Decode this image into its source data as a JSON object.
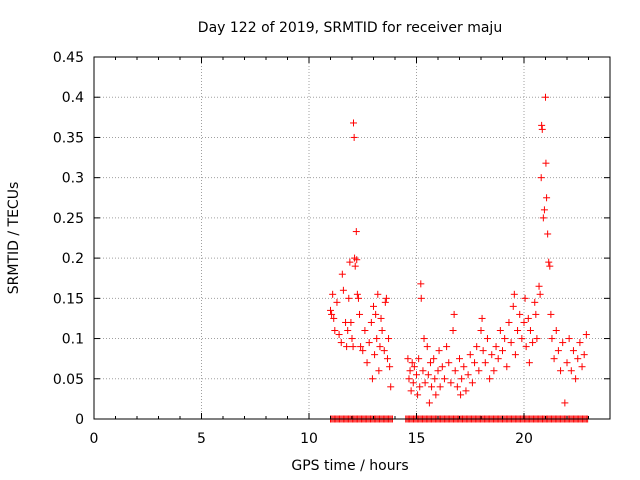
{
  "chart_data": {
    "type": "scatter",
    "title": "Day 122 of 2019, SRMTID for receiver maju",
    "xlabel": "GPS time / hours",
    "ylabel": "SRMTID / TECUs",
    "xlim": [
      0,
      24
    ],
    "ylim": [
      0,
      0.45
    ],
    "xticks": [
      "0",
      "5",
      "10",
      "15",
      "20"
    ],
    "yticks": [
      "0",
      "0.05",
      "0.1",
      "0.15",
      "0.2",
      "0.25",
      "0.3",
      "0.35",
      "0.4",
      "0.45"
    ],
    "grid": true,
    "marker": "+",
    "color": "#ff0000",
    "series": [
      {
        "name": "SRMTID",
        "points": [
          [
            11.0,
            0.135
          ],
          [
            11.05,
            0.13
          ],
          [
            11.1,
            0.155
          ],
          [
            11.15,
            0.125
          ],
          [
            11.2,
            0.11
          ],
          [
            11.3,
            0.145
          ],
          [
            11.4,
            0.105
          ],
          [
            11.5,
            0.095
          ],
          [
            11.55,
            0.18
          ],
          [
            11.6,
            0.16
          ],
          [
            11.7,
            0.12
          ],
          [
            11.75,
            0.09
          ],
          [
            11.8,
            0.11
          ],
          [
            11.85,
            0.15
          ],
          [
            11.9,
            0.195
          ],
          [
            11.95,
            0.12
          ],
          [
            12.0,
            0.1
          ],
          [
            12.05,
            0.09
          ],
          [
            12.07,
            0.368
          ],
          [
            12.1,
            0.35
          ],
          [
            12.12,
            0.2
          ],
          [
            12.15,
            0.19
          ],
          [
            12.2,
            0.233
          ],
          [
            12.22,
            0.198
          ],
          [
            12.25,
            0.155
          ],
          [
            12.3,
            0.15
          ],
          [
            12.35,
            0.13
          ],
          [
            12.4,
            0.09
          ],
          [
            12.5,
            0.085
          ],
          [
            12.6,
            0.11
          ],
          [
            12.7,
            0.07
          ],
          [
            12.8,
            0.095
          ],
          [
            12.9,
            0.12
          ],
          [
            12.95,
            0.05
          ],
          [
            13.0,
            0.14
          ],
          [
            13.05,
            0.08
          ],
          [
            13.1,
            0.13
          ],
          [
            13.15,
            0.1
          ],
          [
            13.2,
            0.155
          ],
          [
            13.25,
            0.06
          ],
          [
            13.3,
            0.09
          ],
          [
            13.35,
            0.125
          ],
          [
            13.4,
            0.11
          ],
          [
            13.5,
            0.085
          ],
          [
            13.55,
            0.145
          ],
          [
            13.6,
            0.15
          ],
          [
            13.65,
            0.075
          ],
          [
            13.7,
            0.1
          ],
          [
            13.75,
            0.065
          ],
          [
            13.8,
            0.04
          ],
          [
            14.6,
            0.075
          ],
          [
            14.65,
            0.05
          ],
          [
            14.7,
            0.06
          ],
          [
            14.75,
            0.035
          ],
          [
            14.8,
            0.07
          ],
          [
            14.85,
            0.045
          ],
          [
            14.9,
            0.065
          ],
          [
            15.0,
            0.055
          ],
          [
            15.05,
            0.03
          ],
          [
            15.1,
            0.075
          ],
          [
            15.15,
            0.04
          ],
          [
            15.2,
            0.168
          ],
          [
            15.22,
            0.15
          ],
          [
            15.3,
            0.06
          ],
          [
            15.35,
            0.1
          ],
          [
            15.4,
            0.045
          ],
          [
            15.5,
            0.09
          ],
          [
            15.55,
            0.055
          ],
          [
            15.6,
            0.02
          ],
          [
            15.65,
            0.07
          ],
          [
            15.7,
            0.04
          ],
          [
            15.8,
            0.075
          ],
          [
            15.85,
            0.05
          ],
          [
            15.9,
            0.03
          ],
          [
            16.0,
            0.06
          ],
          [
            16.05,
            0.085
          ],
          [
            16.1,
            0.04
          ],
          [
            16.2,
            0.065
          ],
          [
            16.3,
            0.05
          ],
          [
            16.4,
            0.09
          ],
          [
            16.5,
            0.07
          ],
          [
            16.6,
            0.045
          ],
          [
            16.7,
            0.11
          ],
          [
            16.75,
            0.13
          ],
          [
            16.8,
            0.06
          ],
          [
            16.9,
            0.04
          ],
          [
            17.0,
            0.075
          ],
          [
            17.05,
            0.03
          ],
          [
            17.1,
            0.05
          ],
          [
            17.2,
            0.065
          ],
          [
            17.3,
            0.035
          ],
          [
            17.4,
            0.055
          ],
          [
            17.5,
            0.08
          ],
          [
            17.6,
            0.045
          ],
          [
            17.7,
            0.07
          ],
          [
            17.8,
            0.09
          ],
          [
            17.9,
            0.06
          ],
          [
            18.0,
            0.11
          ],
          [
            18.05,
            0.125
          ],
          [
            18.1,
            0.085
          ],
          [
            18.2,
            0.07
          ],
          [
            18.3,
            0.1
          ],
          [
            18.4,
            0.05
          ],
          [
            18.5,
            0.08
          ],
          [
            18.6,
            0.06
          ],
          [
            18.7,
            0.09
          ],
          [
            18.8,
            0.075
          ],
          [
            18.9,
            0.11
          ],
          [
            19.0,
            0.085
          ],
          [
            19.1,
            0.1
          ],
          [
            19.2,
            0.065
          ],
          [
            19.3,
            0.12
          ],
          [
            19.4,
            0.095
          ],
          [
            19.5,
            0.14
          ],
          [
            19.55,
            0.155
          ],
          [
            19.6,
            0.08
          ],
          [
            19.7,
            0.11
          ],
          [
            19.8,
            0.13
          ],
          [
            19.9,
            0.1
          ],
          [
            20.0,
            0.12
          ],
          [
            20.05,
            0.15
          ],
          [
            20.1,
            0.09
          ],
          [
            20.2,
            0.125
          ],
          [
            20.25,
            0.07
          ],
          [
            20.3,
            0.11
          ],
          [
            20.4,
            0.095
          ],
          [
            20.5,
            0.145
          ],
          [
            20.55,
            0.13
          ],
          [
            20.6,
            0.1
          ],
          [
            20.7,
            0.165
          ],
          [
            20.75,
            0.155
          ],
          [
            20.8,
            0.3
          ],
          [
            20.82,
            0.365
          ],
          [
            20.85,
            0.36
          ],
          [
            20.9,
            0.25
          ],
          [
            20.95,
            0.26
          ],
          [
            21.0,
            0.4
          ],
          [
            21.02,
            0.318
          ],
          [
            21.05,
            0.275
          ],
          [
            21.1,
            0.23
          ],
          [
            21.15,
            0.195
          ],
          [
            21.2,
            0.19
          ],
          [
            21.25,
            0.13
          ],
          [
            21.3,
            0.1
          ],
          [
            21.4,
            0.075
          ],
          [
            21.5,
            0.11
          ],
          [
            21.6,
            0.085
          ],
          [
            21.7,
            0.06
          ],
          [
            21.8,
            0.095
          ],
          [
            21.9,
            0.02
          ],
          [
            22.0,
            0.07
          ],
          [
            22.1,
            0.1
          ],
          [
            22.2,
            0.06
          ],
          [
            22.3,
            0.085
          ],
          [
            22.4,
            0.05
          ],
          [
            22.5,
            0.075
          ],
          [
            22.6,
            0.095
          ],
          [
            22.7,
            0.065
          ],
          [
            22.8,
            0.08
          ],
          [
            22.9,
            0.105
          ]
        ]
      }
    ],
    "zero_band": [
      [
        11.0,
        13.9
      ],
      [
        14.5,
        23.0
      ]
    ]
  }
}
